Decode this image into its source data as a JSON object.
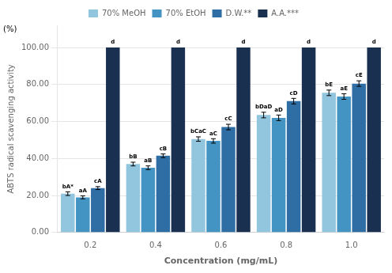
{
  "chart_data": {
    "type": "bar",
    "categories": [
      "0.2",
      "0.4",
      "0.6",
      "0.8",
      "1.0"
    ],
    "series": [
      {
        "name": "70% MeOH",
        "color": "#92C5DE",
        "values": [
          21.0,
          37.0,
          50.5,
          63.5,
          75.5
        ],
        "errors": [
          1.0,
          1.0,
          1.2,
          1.5,
          1.5
        ],
        "labels": [
          "bA*",
          "bB",
          "bCaC",
          "bDaD",
          "bE"
        ]
      },
      {
        "name": "70% EtOH",
        "color": "#4393C3",
        "values": [
          19.0,
          35.0,
          49.5,
          62.0,
          73.5
        ],
        "errors": [
          0.8,
          1.0,
          1.2,
          1.5,
          1.5
        ],
        "labels": [
          "aA",
          "aB",
          "aC",
          "aD",
          "aE"
        ]
      },
      {
        "name": "D.W.**",
        "color": "#2F6EA5",
        "values": [
          24.0,
          41.5,
          57.0,
          71.0,
          80.5
        ],
        "errors": [
          0.8,
          1.0,
          1.5,
          1.5,
          1.5
        ],
        "labels": [
          "cA",
          "cB",
          "cC",
          "cD",
          "cE"
        ]
      },
      {
        "name": "A.A.***",
        "color": "#1A3050",
        "values": [
          100.0,
          100.0,
          100.0,
          100.0,
          100.0
        ],
        "errors": [
          0.0,
          0.0,
          0.0,
          0.0,
          0.0
        ],
        "labels": [
          "d",
          "d",
          "d",
          "d",
          "d"
        ]
      }
    ],
    "ylabel": "ABTS radical scavenging activity",
    "annotations": [
      "(%)"
    ],
    "xlabel": "Concentration (mg/mL)",
    "ylim": [
      0,
      112
    ],
    "yticks": [
      {
        "value": 0.0,
        "label": "0.00"
      },
      {
        "value": 20.0,
        "label": "20.00"
      },
      {
        "value": 40.0,
        "label": "40.00"
      },
      {
        "value": 60.0,
        "label": "60.00"
      },
      {
        "value": 80.0,
        "label": "80.00"
      },
      {
        "value": 100.0,
        "label": "100.00"
      }
    ],
    "grid": true,
    "legend": "top"
  }
}
